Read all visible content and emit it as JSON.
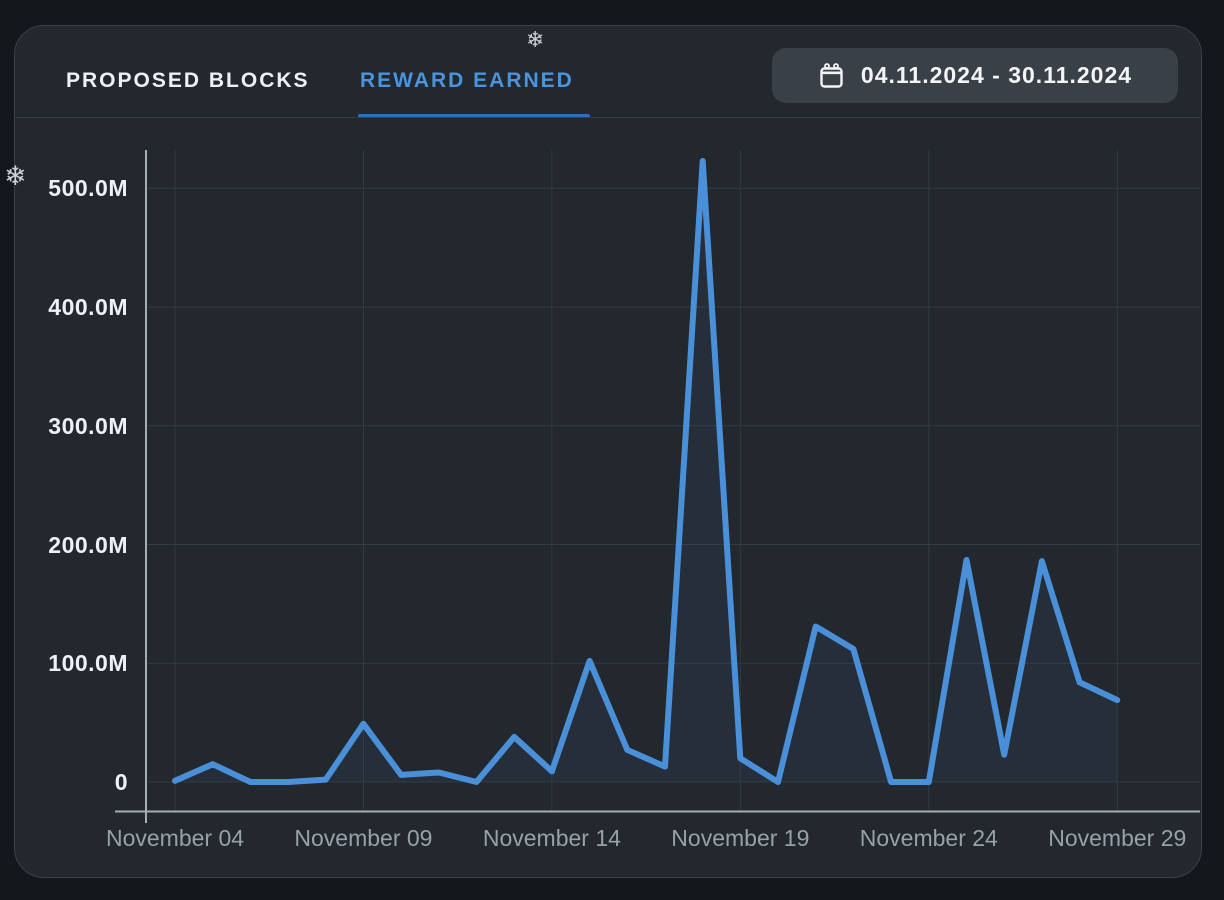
{
  "header": {
    "tabs": [
      {
        "label": "PROPOSED BLOCKS",
        "active": false
      },
      {
        "label": "REWARD EARNED",
        "active": true
      }
    ],
    "date_range": {
      "icon": "calendar-icon",
      "label": "04.11.2024 - 30.11.2024"
    }
  },
  "decorations": {
    "snowflake_top_glyph": "❄",
    "snowflake_left_glyph": "❄",
    "icon_name": "snowflake-icon"
  },
  "colors": {
    "page_background": "#14171c",
    "card_background": "#23272e",
    "accent_blue": "#4a90d9",
    "tab_active": "#4a94dd",
    "tab_underline": "#3070b8",
    "axis_label_white": "#eef1f4",
    "axis_label_gray": "#99a0a8",
    "chip_background": "#3a4047"
  },
  "chart_data": {
    "type": "line",
    "title": "REWARD EARNED",
    "unit": "M",
    "grid": true,
    "legend": false,
    "line_color": "#4a90d9",
    "ylim": [
      0,
      540
    ],
    "x_days": [
      4,
      5,
      6,
      7,
      8,
      9,
      10,
      11,
      12,
      13,
      14,
      15,
      16,
      17,
      18,
      19,
      20,
      21,
      22,
      23,
      24,
      25,
      26,
      27,
      28,
      29
    ],
    "values_m": [
      1,
      15,
      0,
      0,
      2,
      49,
      6,
      8,
      0,
      38,
      9,
      102,
      27,
      13,
      523,
      20,
      0,
      131,
      112,
      0,
      0,
      187,
      23,
      186,
      84,
      69
    ],
    "x_ticks": [
      {
        "day_index": 0,
        "label": "November 04"
      },
      {
        "day_index": 5,
        "label": "November 09"
      },
      {
        "day_index": 10,
        "label": "November 14"
      },
      {
        "day_index": 15,
        "label": "November 19"
      },
      {
        "day_index": 20,
        "label": "November 24"
      },
      {
        "day_index": 25,
        "label": "November 29"
      }
    ],
    "y_ticks": [
      {
        "value": 0,
        "label": "0"
      },
      {
        "value": 100,
        "label": "100.0M"
      },
      {
        "value": 200,
        "label": "200.0M"
      },
      {
        "value": 300,
        "label": "300.0M"
      },
      {
        "value": 400,
        "label": "400.0M"
      },
      {
        "value": 500,
        "label": "500.0M"
      }
    ]
  }
}
